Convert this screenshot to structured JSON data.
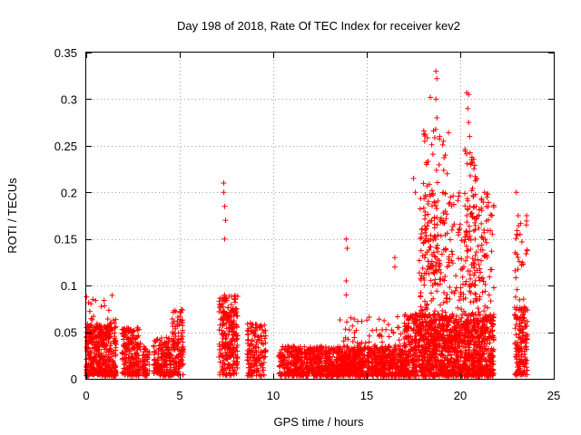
{
  "chart_data": {
    "type": "scatter",
    "title": "Day 198 of 2018, Rate Of TEC Index for receiver kev2",
    "xlabel": "GPS time / hours",
    "ylabel": "ROTI / TECUs",
    "xlim": [
      0,
      25
    ],
    "ylim": [
      0,
      0.35
    ],
    "grid": true,
    "marker": "+",
    "marker_color": "#ff0000",
    "x_ticks": [
      0,
      5,
      10,
      15,
      20,
      25
    ],
    "x_tick_labels": [
      "0",
      "5",
      "10",
      "15",
      "20",
      "25"
    ],
    "y_ticks": [
      0,
      0.05,
      0.1,
      0.15,
      0.2,
      0.25,
      0.3,
      0.35
    ],
    "y_tick_labels": [
      "0",
      "0.05",
      "0.1",
      "0.15",
      "0.2",
      "0.25",
      "0.3",
      "0.35"
    ],
    "series": [
      {
        "name": "ROTI",
        "clusters": [
          {
            "x_range": [
              0.0,
              1.6
            ],
            "y_range": [
              0.003,
              0.06
            ],
            "count": 420,
            "skew": 1.4
          },
          {
            "x_range": [
              0.0,
              1.6
            ],
            "y_range": [
              0.04,
              0.092
            ],
            "count": 40,
            "skew": 1.2
          },
          {
            "x_range": [
              1.9,
              2.9
            ],
            "y_range": [
              0.003,
              0.055
            ],
            "count": 200,
            "skew": 1.3
          },
          {
            "x_range": [
              3.0,
              3.4
            ],
            "y_range": [
              0.003,
              0.035
            ],
            "count": 60,
            "skew": 1.2
          },
          {
            "x_range": [
              3.6,
              4.6
            ],
            "y_range": [
              0.003,
              0.045
            ],
            "count": 180,
            "skew": 1.3
          },
          {
            "x_range": [
              4.6,
              5.2
            ],
            "y_range": [
              0.003,
              0.075
            ],
            "count": 120,
            "skew": 1.1
          },
          {
            "x_range": [
              7.1,
              8.1
            ],
            "y_range": [
              0.003,
              0.09
            ],
            "count": 260,
            "skew": 1.2
          },
          {
            "x_range": [
              8.6,
              9.6
            ],
            "y_range": [
              0.003,
              0.06
            ],
            "count": 160,
            "skew": 1.4
          },
          {
            "x_range": [
              10.3,
              11.1
            ],
            "y_range": [
              0.003,
              0.035
            ],
            "count": 110,
            "skew": 1.3
          },
          {
            "x_range": [
              11.1,
              17.0
            ],
            "y_range": [
              0.003,
              0.035
            ],
            "count": 1100,
            "skew": 1.5
          },
          {
            "x_range": [
              13.5,
              17.0
            ],
            "y_range": [
              0.01,
              0.07
            ],
            "count": 120,
            "skew": 1.8
          },
          {
            "x_range": [
              17.0,
              21.8
            ],
            "y_range": [
              0.003,
              0.07
            ],
            "count": 1300,
            "skew": 1.5
          },
          {
            "x_range": [
              17.8,
              21.8
            ],
            "y_range": [
              0.04,
              0.2
            ],
            "count": 420,
            "skew": 1.6
          },
          {
            "x_range": [
              18.0,
              19.4
            ],
            "y_range": [
              0.1,
              0.27
            ],
            "count": 90,
            "skew": 1.4
          },
          {
            "x_range": [
              20.2,
              20.9
            ],
            "y_range": [
              0.1,
              0.25
            ],
            "count": 60,
            "skew": 1.3
          },
          {
            "x_range": [
              22.9,
              23.6
            ],
            "y_range": [
              0.003,
              0.08
            ],
            "count": 160,
            "skew": 1.2
          },
          {
            "x_range": [
              22.9,
              23.6
            ],
            "y_range": [
              0.05,
              0.17
            ],
            "count": 35,
            "skew": 1.1
          }
        ],
        "highlights": [
          [
            7.35,
            0.21
          ],
          [
            7.35,
            0.2
          ],
          [
            7.4,
            0.185
          ],
          [
            7.45,
            0.17
          ],
          [
            7.4,
            0.15
          ],
          [
            13.9,
            0.15
          ],
          [
            13.95,
            0.14
          ],
          [
            13.9,
            0.105
          ],
          [
            13.9,
            0.09
          ],
          [
            16.5,
            0.13
          ],
          [
            16.5,
            0.12
          ],
          [
            17.5,
            0.215
          ],
          [
            17.6,
            0.2
          ],
          [
            18.1,
            0.255
          ],
          [
            18.2,
            0.23
          ],
          [
            18.4,
            0.302
          ],
          [
            18.7,
            0.33
          ],
          [
            18.75,
            0.322
          ],
          [
            18.7,
            0.3
          ],
          [
            18.75,
            0.28
          ],
          [
            18.9,
            0.26
          ],
          [
            19.1,
            0.255
          ],
          [
            19.2,
            0.24
          ],
          [
            19.3,
            0.22
          ],
          [
            20.35,
            0.307
          ],
          [
            20.45,
            0.305
          ],
          [
            20.4,
            0.29
          ],
          [
            20.45,
            0.275
          ],
          [
            20.5,
            0.26
          ],
          [
            20.6,
            0.235
          ],
          [
            20.55,
            0.23
          ],
          [
            20.8,
            0.16
          ],
          [
            21.3,
            0.2
          ],
          [
            21.4,
            0.185
          ],
          [
            23.0,
            0.2
          ],
          [
            23.1,
            0.175
          ],
          [
            23.55,
            0.175
          ],
          [
            23.2,
            0.155
          ]
        ]
      }
    ]
  }
}
